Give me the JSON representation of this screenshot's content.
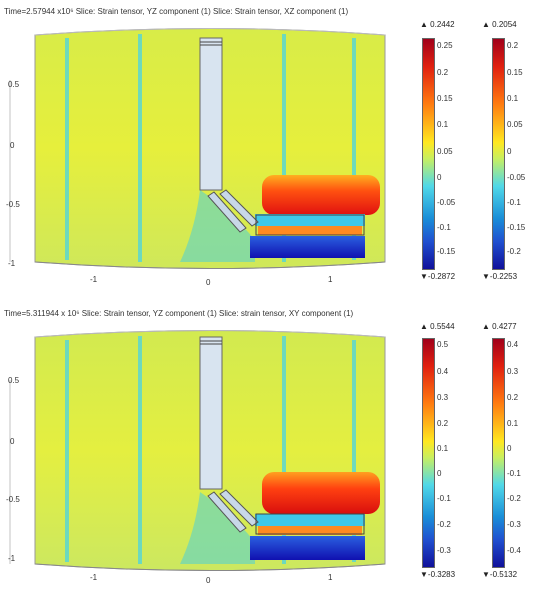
{
  "panels": [
    {
      "title": "Time=2.57944 x10⁶   Slice: Strain tensor, YZ component (1)   Slice: Strain tensor, XZ component (1)",
      "y_ticks": [
        "0.5",
        "0",
        "-0.5",
        "-1"
      ],
      "x_ticks": [
        "-1",
        "0",
        "1"
      ],
      "colorbars": [
        {
          "max": "▲ 0.2442",
          "min": "▼-0.2872",
          "labels": [
            "0.25",
            "0.2",
            "0.15",
            "0.1",
            "0.05",
            "0",
            "-0.05",
            "-0.1",
            "-0.15"
          ]
        },
        {
          "max": "▲ 0.2054",
          "min": "▼-0.2253",
          "labels": [
            "0.2",
            "0.15",
            "0.1",
            "0.05",
            "0",
            "-0.05",
            "-0.1",
            "-0.15",
            "-0.2"
          ]
        }
      ]
    },
    {
      "title": "Time=5.311944 x 10⁶     Slice: Strain tensor, YZ component (1)   Slice: strain tensor, XY component (1)",
      "y_ticks": [
        "0.5",
        "0",
        "-0.5",
        "-1"
      ],
      "x_ticks": [
        "-1",
        "0",
        "1"
      ],
      "colorbars": [
        {
          "max": "▲ 0.5544",
          "min": "▼-0.3283",
          "labels": [
            "0.5",
            "0.4",
            "0.3",
            "0.2",
            "0.1",
            "0",
            "-0.1",
            "-0.2",
            "-0.3"
          ]
        },
        {
          "max": "▲ 0.4277",
          "min": "▼-0.5132",
          "labels": [
            "0.4",
            "0.3",
            "0.2",
            "0.1",
            "0",
            "-0.1",
            "-0.2",
            "-0.3",
            "-0.4"
          ]
        }
      ]
    }
  ],
  "colors": {
    "low": "#10109a",
    "mid": "#e8f040",
    "high": "#a0001a",
    "background": "#e2ee3a",
    "stripe": "#50d8d8"
  }
}
